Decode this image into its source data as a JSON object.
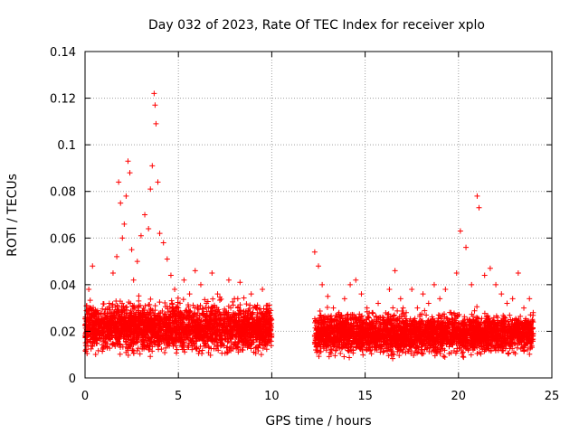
{
  "chart_data": {
    "type": "scatter",
    "title": "Day 032 of 2023, Rate Of TEC Index for receiver xplo",
    "xlabel": "GPS time / hours",
    "ylabel": "ROTI / TECUs",
    "xlim": [
      0,
      25
    ],
    "ylim": [
      0,
      0.14
    ],
    "x_ticks": [
      "0",
      "5",
      "10",
      "15",
      "20",
      "25"
    ],
    "y_ticks": [
      "0",
      "0.02",
      "0.04",
      "0.06",
      "0.08",
      "0.1",
      "0.12",
      "0.14"
    ],
    "grid": true,
    "marker": "plus",
    "series_color": "#ff0000",
    "series": [
      {
        "x": [
          0.1,
          0.2,
          0.3,
          0.4,
          0.5,
          0.7,
          0.9,
          1.1,
          1.3,
          1.5,
          1.7,
          1.8,
          1.9,
          2.0,
          2.1,
          2.2,
          2.3,
          2.4,
          2.5,
          2.6,
          2.8,
          3.0,
          3.2,
          3.4,
          3.5,
          3.6,
          3.7,
          3.75,
          3.8,
          3.9,
          4.0,
          4.2,
          4.4,
          4.6,
          4.8,
          5.0,
          5.3,
          5.6,
          5.9,
          6.2,
          6.5,
          6.8,
          7.1,
          7.4,
          7.7,
          8.0,
          8.3,
          8.6,
          8.9,
          9.2,
          9.5,
          9.8,
          12.3,
          12.5,
          12.7,
          13.0,
          13.3,
          13.6,
          13.9,
          14.2,
          14.5,
          14.8,
          15.1,
          15.4,
          15.7,
          16.0,
          16.3,
          16.6,
          16.9,
          17.2,
          17.5,
          17.8,
          18.1,
          18.4,
          18.7,
          19.0,
          19.3,
          19.6,
          19.9,
          20.1,
          20.4,
          20.7,
          21.0,
          21.1,
          21.4,
          21.7,
          22.0,
          22.3,
          22.6,
          22.9,
          23.2,
          23.5,
          23.8,
          24.0
        ],
        "y": [
          0.02,
          0.038,
          0.03,
          0.048,
          0.015,
          0.022,
          0.018,
          0.026,
          0.032,
          0.045,
          0.052,
          0.084,
          0.075,
          0.06,
          0.066,
          0.078,
          0.093,
          0.088,
          0.055,
          0.042,
          0.05,
          0.061,
          0.07,
          0.064,
          0.081,
          0.091,
          0.122,
          0.117,
          0.109,
          0.084,
          0.062,
          0.058,
          0.051,
          0.044,
          0.038,
          0.03,
          0.042,
          0.036,
          0.046,
          0.04,
          0.032,
          0.045,
          0.036,
          0.028,
          0.042,
          0.034,
          0.041,
          0.028,
          0.036,
          0.03,
          0.038,
          0.025,
          0.054,
          0.048,
          0.04,
          0.035,
          0.03,
          0.028,
          0.034,
          0.04,
          0.042,
          0.036,
          0.03,
          0.028,
          0.032,
          0.025,
          0.038,
          0.046,
          0.034,
          0.028,
          0.038,
          0.03,
          0.036,
          0.032,
          0.04,
          0.034,
          0.038,
          0.028,
          0.045,
          0.063,
          0.056,
          0.04,
          0.078,
          0.073,
          0.044,
          0.047,
          0.04,
          0.036,
          0.032,
          0.034,
          0.045,
          0.03,
          0.034,
          0.028
        ]
      }
    ],
    "dense_band": [
      {
        "x_range": [
          0.0,
          10.0
        ],
        "y_low": 0.008,
        "y_high": 0.035,
        "y_center": 0.02
      },
      {
        "x_range": [
          12.3,
          24.0
        ],
        "y_low": 0.008,
        "y_high": 0.03,
        "y_center": 0.018
      }
    ]
  }
}
